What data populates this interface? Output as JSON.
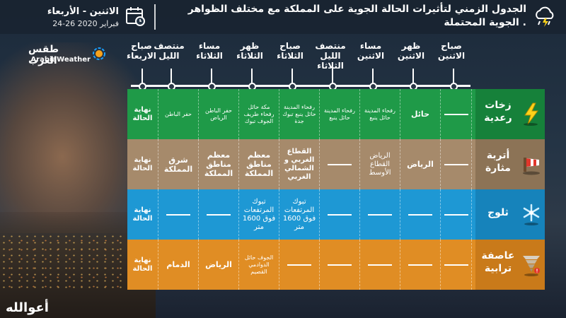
{
  "header": {
    "title": "الجدول الزمني لتأثيرات الحالة الجوية على المملكة مع مختلف الظواهر الجوية المحتملة .",
    "days": "الاثنين - الأربعاء",
    "date_range": "24-26 فبراير 2020"
  },
  "logo": {
    "arabic": "طقس العرب",
    "english": "ArabiaWeather"
  },
  "brand_footer": {
    "text": "أعوالله",
    "accent": "#1aa0ff"
  },
  "periods": [
    "صباح الاثنين",
    "ظهر الاثنين",
    "مساء الاثنين",
    "منتصف الليل الثلاثاء",
    "صباح الثلاثاء",
    "ظهر الثلاثاء",
    "مساء الثلاثاء",
    "منتصف الليل",
    "صباح الاربعاء"
  ],
  "rows": [
    {
      "label": "زخات رعدية",
      "icon": "lightning-icon",
      "color": "#1f9a48",
      "cells": [
        "—",
        "حائل",
        "رفحاء المدينة حائل ينبع",
        "رفحاء المدينة حائل ينبع",
        "رفحاء المدينة حائل ينبع تبوك جدة",
        "مكة حائل رفحاء طريف الجوف تبوك",
        "حفر الباطن الرياض",
        "حفر الباطن",
        "نهاية الحالة"
      ]
    },
    {
      "label": "أتربة مثارة",
      "icon": "dust-wind-icon",
      "color": "#a68a6b",
      "cells": [
        "—",
        "الرياض",
        "الرياض القطاع الأوسط",
        "—",
        "القطاع الغربي و الشمالي الغربي",
        "معظم مناطق المملكة",
        "معظم مناطق المملكة",
        "شرق المملكة",
        "نهاية الحالة"
      ]
    },
    {
      "label": "ثلوج",
      "icon": "snowflake-icon",
      "color": "#1e98d4",
      "cells": [
        "—",
        "—",
        "—",
        "—",
        "تبوك المرتفعات فوق 1600 متر",
        "تبوك المرتفعات فوق 1600 متر",
        "—",
        "—",
        "نهاية الحالة"
      ]
    },
    {
      "label": "عاصفة ترابية",
      "icon": "tornado-icon",
      "color": "#e08d24",
      "cells": [
        "—",
        "—",
        "—",
        "—",
        "—",
        "الجوف حائل الدوادمي القصيم",
        "الرياض",
        "الدمام",
        "نهاية الحالة"
      ]
    }
  ]
}
